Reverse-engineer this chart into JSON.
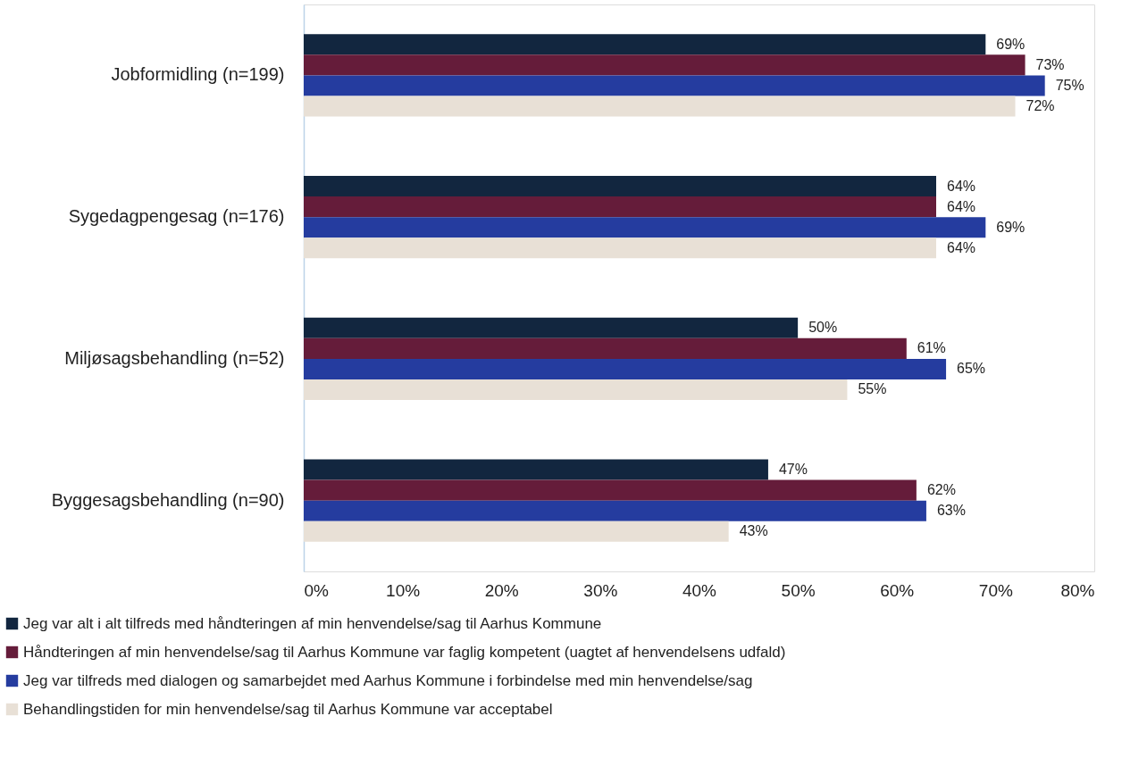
{
  "chart_data": {
    "type": "bar",
    "orientation": "horizontal",
    "categories": [
      "Jobformidling (n=199)",
      "Sygedagpengesag (n=176)",
      "Miljøsagsbehandling (n=52)",
      "Byggesagsbehandling (n=90)"
    ],
    "series": [
      {
        "name": "Jeg var alt i alt tilfreds med håndteringen af min henvendelse/sag til Aarhus Kommune",
        "color": "#12263f",
        "values": [
          69,
          64,
          50,
          47
        ],
        "value_labels": [
          "69%",
          "64%",
          "50%",
          "47%"
        ]
      },
      {
        "name": "Håndteringen af min henvendelse/sag til Aarhus Kommune var faglig kompetent (uagtet af henvendelsens udfald)",
        "color": "#651c3a",
        "values": [
          73,
          64,
          61,
          62
        ],
        "value_labels": [
          "73%",
          "64%",
          "61%",
          "62%"
        ]
      },
      {
        "name": "Jeg var tilfreds med dialogen og samarbejdet med Aarhus Kommune i forbindelse med min henvendelse/sag",
        "color": "#253c9f",
        "values": [
          75,
          69,
          65,
          63
        ],
        "value_labels": [
          "75%",
          "69%",
          "65%",
          "63%"
        ]
      },
      {
        "name": "Behandlingstiden for min henvendelse/sag til Aarhus Kommune var acceptabel",
        "color": "#e8e0d6",
        "values": [
          72,
          64,
          55,
          43
        ],
        "value_labels": [
          "72%",
          "64%",
          "55%",
          "43%"
        ]
      }
    ],
    "xlim": [
      0,
      80
    ],
    "xticks": [
      {
        "value": 0,
        "label": "0%"
      },
      {
        "value": 10,
        "label": "10%"
      },
      {
        "value": 20,
        "label": "20%"
      },
      {
        "value": 30,
        "label": "30%"
      },
      {
        "value": 40,
        "label": "40%"
      },
      {
        "value": 50,
        "label": "50%"
      },
      {
        "value": 60,
        "label": "60%"
      },
      {
        "value": 70,
        "label": "70%"
      },
      {
        "value": 80,
        "label": "80%"
      }
    ],
    "legend": "bottom"
  }
}
